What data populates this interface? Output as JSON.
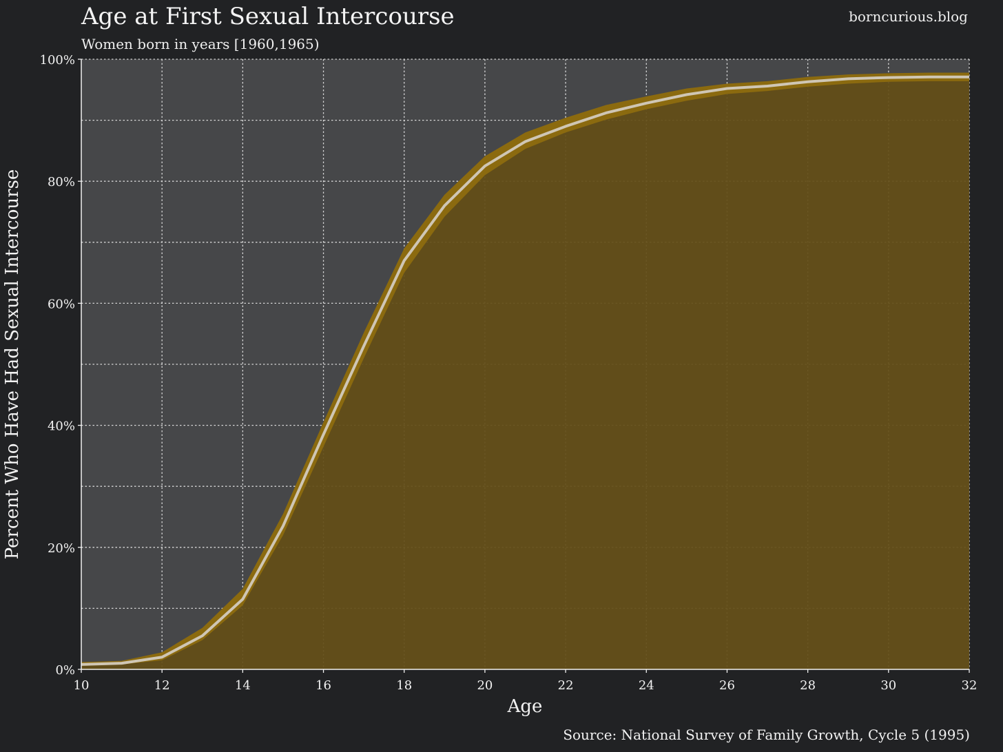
{
  "header": {
    "site": "borncurious.blog"
  },
  "footer": {
    "source": "Source: National Survey of Family Growth, Cycle 5 (1995)"
  },
  "colors": {
    "background": "#212224",
    "plot_background": "#464749",
    "fill": "#634e17",
    "band": "#8b6a0f",
    "line": "#cfc6b4",
    "grid": "#e6e6e6"
  },
  "chart_data": {
    "type": "area",
    "title": "Age at First Sexual Intercourse",
    "subtitle": "Women born in years [1960,1965)",
    "xlabel": "Age",
    "ylabel": "Percent Who Have Had Sexual Intercourse",
    "xlim": [
      10,
      32
    ],
    "ylim": [
      0,
      100
    ],
    "x_ticks": [
      10,
      12,
      14,
      16,
      18,
      20,
      22,
      24,
      26,
      28,
      30,
      32
    ],
    "y_ticks": [
      0,
      20,
      40,
      60,
      80,
      100
    ],
    "y_tick_labels": [
      "0%",
      "20%",
      "40%",
      "60%",
      "80%",
      "100%"
    ],
    "grid": true,
    "x": [
      10,
      11,
      12,
      13,
      14,
      15,
      16,
      17,
      18,
      19,
      20,
      21,
      22,
      23,
      24,
      25,
      26,
      27,
      28,
      29,
      30,
      31,
      32
    ],
    "series": [
      {
        "values": [
          0.8,
          1.0,
          2.0,
          5.5,
          11.5,
          23.5,
          38.5,
          53.0,
          67.0,
          76.0,
          82.5,
          86.5,
          89.0,
          91.2,
          92.8,
          94.2,
          95.2,
          95.6,
          96.3,
          96.8,
          97.0,
          97.1,
          97.1
        ],
        "lower": [
          0.6,
          0.8,
          1.5,
          4.8,
          10.5,
          22.0,
          36.5,
          51.0,
          65.0,
          74.2,
          81.0,
          85.3,
          88.0,
          90.1,
          91.8,
          93.2,
          94.3,
          94.8,
          95.5,
          96.0,
          96.3,
          96.4,
          96.4
        ],
        "upper": [
          1.2,
          1.4,
          2.8,
          6.8,
          13.2,
          25.5,
          40.5,
          55.2,
          69.0,
          77.8,
          84.1,
          88.0,
          90.4,
          92.5,
          93.9,
          95.2,
          96.0,
          96.4,
          97.1,
          97.5,
          97.7,
          97.8,
          97.8
        ]
      }
    ]
  }
}
